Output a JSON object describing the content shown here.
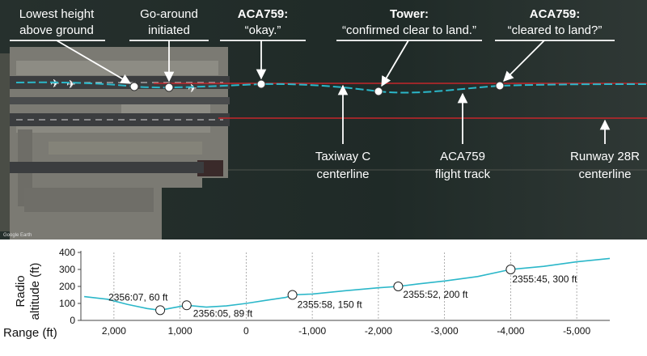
{
  "map_annotations": {
    "lowest_height": {
      "line1": "Lowest height",
      "line2": "above ground"
    },
    "go_around": {
      "line1": "Go-around",
      "line2": "initiated"
    },
    "aca759_okay": {
      "speaker": "ACA759:",
      "quote": "“okay.”"
    },
    "tower": {
      "speaker": "Tower:",
      "quote": "“confirmed clear to land.”"
    },
    "aca759_cleared": {
      "speaker": "ACA759:",
      "quote": "“cleared to land?”"
    },
    "taxiway_c": {
      "line1": "Taxiway C",
      "line2": "centerline"
    },
    "flight_track": {
      "line1": "ACA759",
      "line2": "flight track"
    },
    "runway_28r": {
      "line1": "Runway 28R",
      "line2": "centerline"
    },
    "credit": "Google Earth"
  },
  "colors": {
    "water": "#1f2a27",
    "land": "#7b7a73",
    "runway": "#3b3d3f",
    "red_line": "#c4262b",
    "flight_track": "#2bb7c9",
    "callout": "#ffffff"
  },
  "chart_data": {
    "type": "line",
    "xlabel": "Range (ft)",
    "ylabel_line1": "Radio",
    "ylabel_line2": "altitude (ft)",
    "x_reversed": true,
    "xlim": [
      2500,
      -5500
    ],
    "ylim": [
      0,
      400
    ],
    "xticks": [
      2000,
      1000,
      0,
      -1000,
      -2000,
      -3000,
      -4000,
      -5000
    ],
    "xtick_labels": [
      "2,000",
      "1,000",
      "0",
      "-1,000",
      "-2,000",
      "-3,000",
      "-4,000",
      "-5,000"
    ],
    "yticks": [
      0,
      100,
      200,
      300,
      400
    ],
    "ytick_labels": [
      "0",
      "100",
      "200",
      "300",
      "400"
    ],
    "grid": "vertical dashed",
    "series": [
      {
        "x": [
          2450,
          2100,
          1800,
          1500,
          1300,
          1100,
          900,
          600,
          300,
          0,
          -300,
          -600,
          -700,
          -1000,
          -1500,
          -2000,
          -2300,
          -2600,
          -3000,
          -3500,
          -4000,
          -4500,
          -5000,
          -5500
        ],
        "y": [
          140,
          125,
          95,
          70,
          60,
          75,
          89,
          78,
          85,
          100,
          118,
          135,
          150,
          155,
          175,
          192,
          200,
          215,
          232,
          258,
          300,
          318,
          345,
          365
        ]
      }
    ],
    "annotations": [
      {
        "x": 1300,
        "y": 60,
        "label": "2356:07, 60 ft"
      },
      {
        "x": 900,
        "y": 89,
        "label": "2356:05, 89 ft"
      },
      {
        "x": -700,
        "y": 150,
        "label": "2355:58, 150 ft"
      },
      {
        "x": -2300,
        "y": 200,
        "label": "2355:52, 200 ft"
      },
      {
        "x": -4000,
        "y": 300,
        "label": "2355:45, 300 ft"
      }
    ]
  }
}
